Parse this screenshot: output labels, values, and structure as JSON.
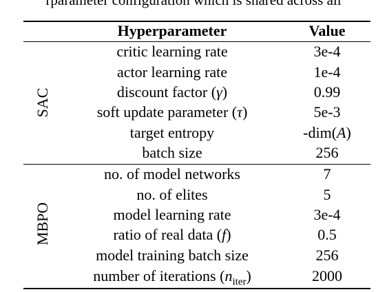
{
  "caption": "rparameter configuration which is shared across all",
  "table": {
    "header": {
      "param": "Hyperparameter",
      "value": "Value"
    },
    "groups": [
      {
        "label": "SAC",
        "rows": [
          {
            "param": "critic learning rate",
            "value": "3e-4"
          },
          {
            "param": "actor learning rate",
            "value": "1e-4"
          },
          {
            "param_text": "discount factor (",
            "param_math": "γ",
            "param_tail": ")",
            "value": "0.99"
          },
          {
            "param_text": "soft update parameter (",
            "param_math": "τ",
            "param_tail": ")",
            "value": "5e-3"
          },
          {
            "param": "target entropy",
            "value_text": "-dim(",
            "value_math": "A",
            "value_tail": ")"
          },
          {
            "param": "batch size",
            "value": "256"
          }
        ]
      },
      {
        "label": "MBPO",
        "rows": [
          {
            "param": "no. of model networks",
            "value": "7"
          },
          {
            "param": "no. of elites",
            "value": "5"
          },
          {
            "param": "model learning rate",
            "value": "3e-4"
          },
          {
            "param_text": "ratio of real data (",
            "param_math": "f",
            "param_tail": ")",
            "value": "0.5"
          },
          {
            "param": "model training batch size",
            "value": "256"
          },
          {
            "param_text": "number of iterations (",
            "param_math": "n",
            "param_sub": "iter",
            "param_tail": ")",
            "value": "2000"
          }
        ]
      }
    ]
  }
}
